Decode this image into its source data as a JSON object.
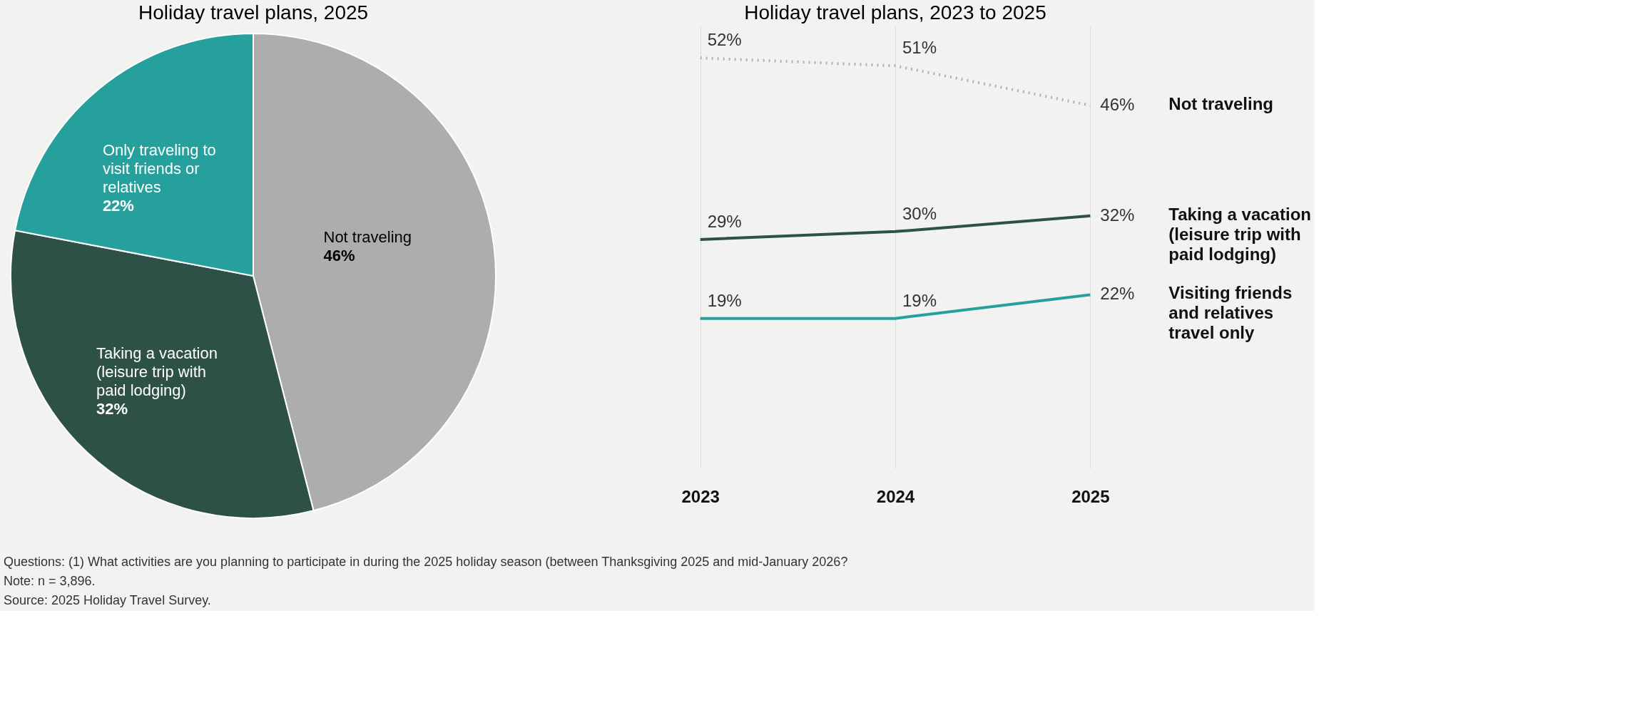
{
  "chart_data": [
    {
      "type": "pie",
      "title": "Holiday travel plans, 2025",
      "categories": [
        "Not traveling",
        "Taking a vacation (leisure trip with paid lodging)",
        "Only traveling to visit friends or relatives"
      ],
      "values": [
        46,
        32,
        22
      ],
      "value_labels": [
        "46%",
        "32%",
        "22%"
      ],
      "colors": [
        "#adadad",
        "#2e5147",
        "#26a09d"
      ],
      "legend": false,
      "annotations": [
        "Questions: (1) What activities are you planning to participate in during the 2025 holiday season (between Thanksgiving 2025 and mid-January 2026?",
        "Note: n = 3,896.",
        "Source: 2025 Holiday Travel Survey."
      ]
    },
    {
      "type": "line",
      "title": "Holiday travel plans, 2023 to 2025",
      "categories": [
        "2023",
        "2024",
        "2025"
      ],
      "ylim": [
        0,
        56
      ],
      "tick_labels": "x",
      "grid": "x",
      "marker": "none",
      "series": [
        {
          "name": "Not traveling",
          "color": "#b0b0b0",
          "line_style": "dotted",
          "values": [
            52,
            51,
            46
          ],
          "value_labels": [
            "52%",
            "51%",
            "46%"
          ]
        },
        {
          "name": "Taking a vacation (leisure trip with paid lodging)",
          "color": "#2e5147",
          "line_style": "solid",
          "values": [
            29,
            30,
            32
          ],
          "value_labels": [
            "29%",
            "30%",
            "32%"
          ]
        },
        {
          "name": "Visiting friends and relatives travel only",
          "color": "#26a09d",
          "line_style": "solid",
          "values": [
            19,
            19,
            22
          ],
          "value_labels": [
            "19%",
            "19%",
            "22%"
          ]
        }
      ]
    }
  ]
}
